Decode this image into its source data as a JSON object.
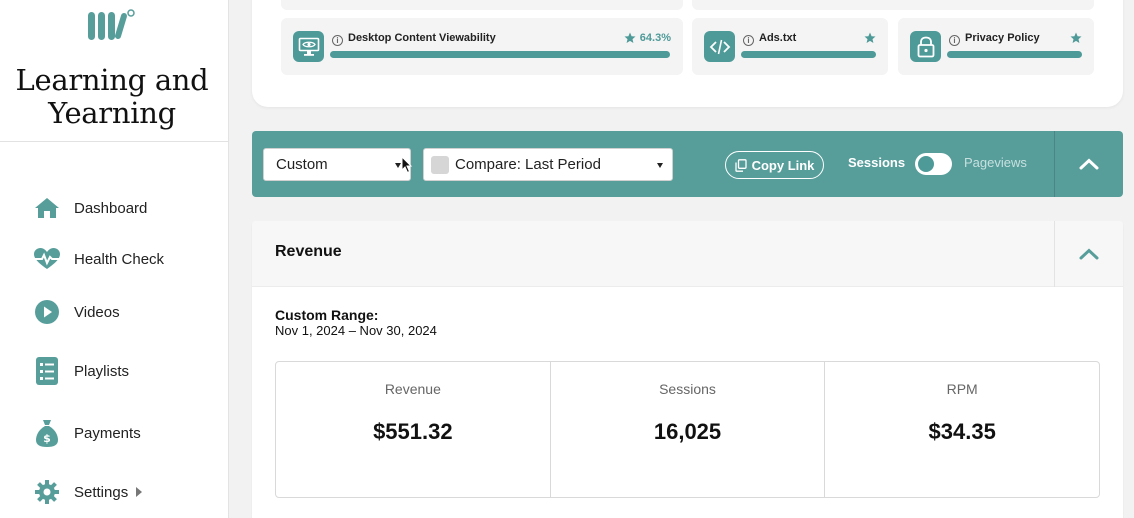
{
  "brand": {
    "title": "Learning and Yearning",
    "accent": "#579e9b"
  },
  "nav": [
    {
      "label": "Dashboard",
      "icon": "home-icon"
    },
    {
      "label": "Health Check",
      "icon": "heartbeat-icon"
    },
    {
      "label": "Videos",
      "icon": "play-circle-icon"
    },
    {
      "label": "Playlists",
      "icon": "list-icon"
    },
    {
      "label": "Payments",
      "icon": "money-bag-icon"
    },
    {
      "label": "Settings",
      "icon": "gear-icon"
    }
  ],
  "checks": [
    {
      "title": "Desktop Content Viewability",
      "score": "64.3%",
      "icon": "monitor-eye-icon",
      "progress": 1.0
    },
    {
      "title": "Ads.txt",
      "icon": "code-icon",
      "progress": 1.0
    },
    {
      "title": "Privacy Policy",
      "icon": "lock-icon",
      "progress": 1.0
    }
  ],
  "toolbar": {
    "date_select": "Custom",
    "compare_select": "Compare: Last Period",
    "copy_link": "Copy Link",
    "toggle_left": "Sessions",
    "toggle_right": "Pageviews"
  },
  "revenue": {
    "title": "Revenue",
    "range_label": "Custom Range:",
    "range_value": "Nov 1, 2024 – Nov 30, 2024",
    "metrics": [
      {
        "label": "Revenue",
        "value": "$551.32"
      },
      {
        "label": "Sessions",
        "value": "16,025"
      },
      {
        "label": "RPM",
        "value": "$34.35"
      }
    ]
  }
}
